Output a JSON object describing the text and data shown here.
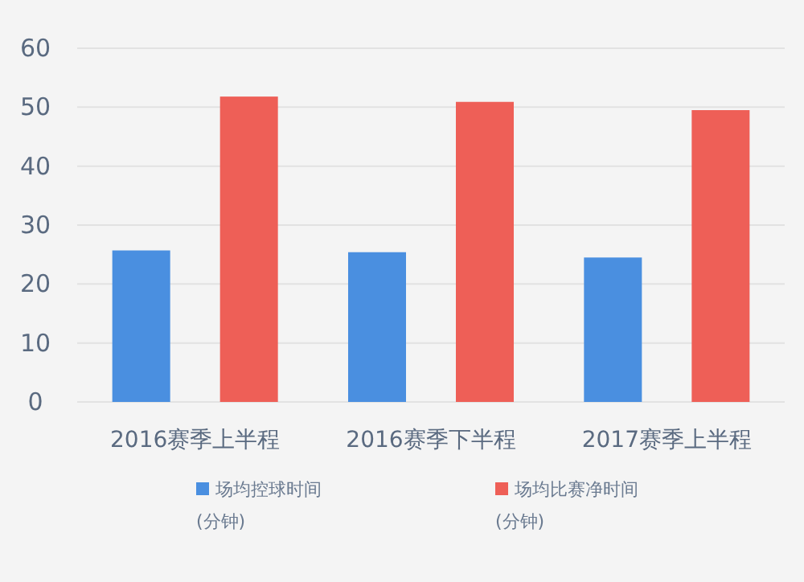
{
  "chart_data": {
    "type": "bar",
    "categories": [
      "2016赛季上半程",
      "2016赛季下半程",
      "2017赛季上半程"
    ],
    "series": [
      {
        "name": "场均控球时间 (分钟)",
        "color": "#4a8fe0",
        "values": [
          25.7,
          25.4,
          24.5
        ]
      },
      {
        "name": "场均比赛净时间 (分钟)",
        "color": "#ee5f57",
        "values": [
          51.8,
          50.9,
          49.5
        ]
      }
    ],
    "ylim": [
      0,
      60
    ],
    "yticks": [
      0,
      10,
      20,
      30,
      40,
      50,
      60
    ],
    "grid": "y",
    "legend": "bottom"
  }
}
